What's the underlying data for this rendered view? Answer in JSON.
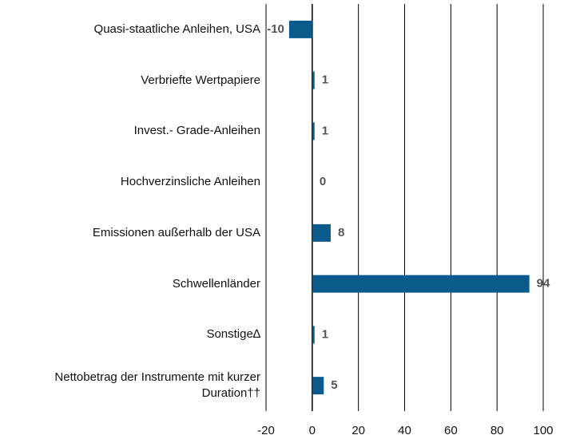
{
  "chart_data": {
    "type": "bar",
    "orientation": "horizontal",
    "categories": [
      "Quasi-staatliche Anleihen, USA",
      "Verbriefte Wertpapiere",
      "Invest.- Grade-Anleihen",
      "Hochverzinsliche Anleihen",
      "Emissionen außerhalb der USA",
      "Schwellenländer",
      "Sonstige∆",
      "Nettobetrag der Instrumente mit kurzer Duration††"
    ],
    "values": [
      -10,
      1,
      1,
      0,
      8,
      94,
      1,
      5
    ],
    "color": "#0b5a8c",
    "xlim": [
      -20,
      100
    ],
    "xticks": [
      -20,
      0,
      20,
      40,
      60,
      80,
      100
    ],
    "grid": true
  }
}
